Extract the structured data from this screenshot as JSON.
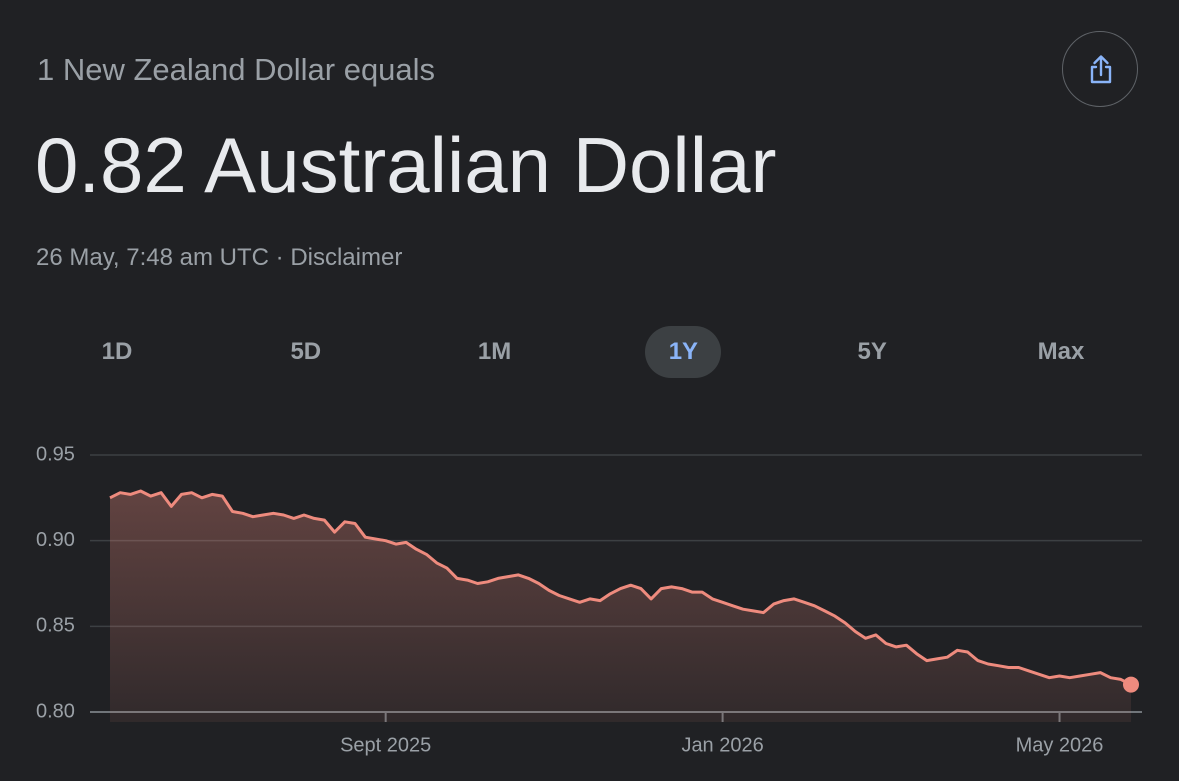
{
  "header": {
    "subtitle": "1 New Zealand Dollar equals",
    "value": "0.82 Australian Dollar",
    "timestamp": "26 May, 7:48 am UTC",
    "separator": "·",
    "disclaimer": "Disclaimer"
  },
  "ranges": [
    "1D",
    "5D",
    "1M",
    "1Y",
    "5Y",
    "Max"
  ],
  "selected_range": "1Y",
  "chart_data": {
    "type": "line",
    "color": "#ee8b7e",
    "categories": [
      null,
      null,
      null,
      null,
      null,
      null,
      null,
      null,
      null,
      null,
      null,
      null,
      null,
      null,
      null,
      null,
      null,
      null,
      null,
      null,
      null,
      null,
      null,
      null,
      null,
      null,
      null,
      "Sept 2025",
      null,
      null,
      null,
      null,
      null,
      null,
      null,
      null,
      null,
      null,
      null,
      null,
      null,
      null,
      null,
      null,
      null,
      null,
      null,
      null,
      null,
      null,
      null,
      null,
      null,
      null,
      null,
      null,
      null,
      null,
      null,
      null,
      "Jan 2026",
      null,
      null,
      null,
      null,
      null,
      null,
      null,
      null,
      null,
      null,
      null,
      null,
      null,
      null,
      null,
      null,
      null,
      null,
      null,
      null,
      null,
      null,
      null,
      null,
      null,
      null,
      null,
      null,
      null,
      null,
      null,
      null,
      "May 2026",
      null,
      null,
      null,
      null,
      null,
      null,
      null
    ],
    "values": [
      0.925,
      0.928,
      0.927,
      0.929,
      0.926,
      0.928,
      0.92,
      0.927,
      0.928,
      0.925,
      0.927,
      0.926,
      0.917,
      0.916,
      0.914,
      0.915,
      0.916,
      0.915,
      0.913,
      0.915,
      0.913,
      0.912,
      0.905,
      0.911,
      0.91,
      0.902,
      0.901,
      0.9,
      0.898,
      0.899,
      0.895,
      0.892,
      0.887,
      0.884,
      0.878,
      0.877,
      0.875,
      0.876,
      0.878,
      0.879,
      0.88,
      0.878,
      0.875,
      0.871,
      0.868,
      0.866,
      0.864,
      0.866,
      0.865,
      0.869,
      0.872,
      0.874,
      0.872,
      0.866,
      0.872,
      0.873,
      0.872,
      0.87,
      0.87,
      0.866,
      0.864,
      0.862,
      0.86,
      0.859,
      0.858,
      0.863,
      0.865,
      0.866,
      0.864,
      0.862,
      0.859,
      0.856,
      0.852,
      0.847,
      0.843,
      0.845,
      0.84,
      0.838,
      0.839,
      0.834,
      0.83,
      0.831,
      0.832,
      0.836,
      0.835,
      0.83,
      0.828,
      0.827,
      0.826,
      0.826,
      0.824,
      0.822,
      0.82,
      0.821,
      0.82,
      0.821,
      0.822,
      0.823,
      0.82,
      0.819,
      0.816
    ],
    "ylim": [
      0.8,
      0.95
    ],
    "yticks": [
      {
        "value": 0.8,
        "label": "0.80"
      },
      0.85,
      {
        "value": 0.9,
        "label": "0.90"
      },
      0.95
    ],
    "grid": true
  }
}
